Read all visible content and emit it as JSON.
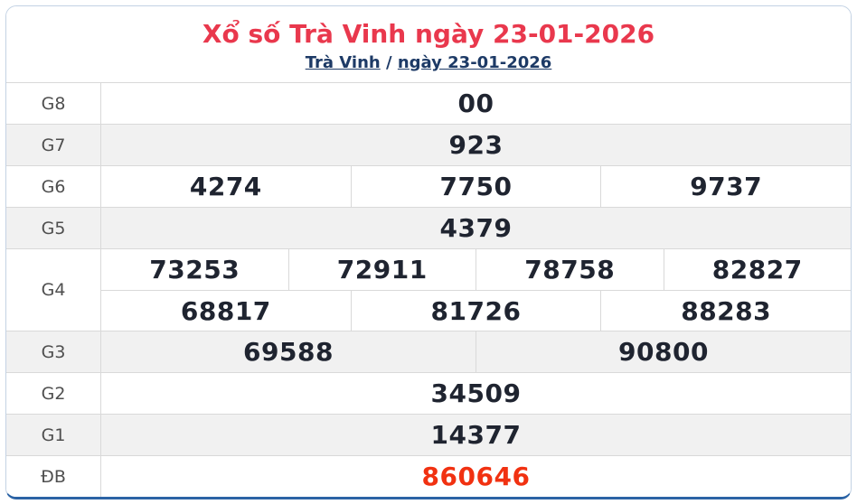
{
  "header": {
    "title": "Xổ số Trà Vinh ngày 23-01-2026",
    "breadcrumb": {
      "province_link": "Trà Vinh",
      "separator": "/",
      "date_link": "ngày 23-01-2026"
    }
  },
  "colors": {
    "title_red": "#e9384d",
    "link_navy": "#1d3a66",
    "number_dark": "#1f2430",
    "special_red": "#f13111",
    "shaded_row_bg": "#f1f1f1",
    "cell_border": "#d9d9d9",
    "card_border": "#c3d2e4",
    "card_bottom_border": "#2b63a5"
  },
  "table": {
    "rows": [
      {
        "label": "G8",
        "shaded": false,
        "special": false,
        "lines": [
          [
            "00"
          ]
        ]
      },
      {
        "label": "G7",
        "shaded": true,
        "special": false,
        "lines": [
          [
            "923"
          ]
        ]
      },
      {
        "label": "G6",
        "shaded": false,
        "special": false,
        "lines": [
          [
            "4274",
            "7750",
            "9737"
          ]
        ]
      },
      {
        "label": "G5",
        "shaded": true,
        "special": false,
        "lines": [
          [
            "4379"
          ]
        ]
      },
      {
        "label": "G4",
        "shaded": false,
        "special": false,
        "lines": [
          [
            "73253",
            "72911",
            "78758",
            "82827"
          ],
          [
            "68817",
            "81726",
            "88283"
          ]
        ]
      },
      {
        "label": "G3",
        "shaded": true,
        "special": false,
        "lines": [
          [
            "69588",
            "90800"
          ]
        ]
      },
      {
        "label": "G2",
        "shaded": false,
        "special": false,
        "lines": [
          [
            "34509"
          ]
        ]
      },
      {
        "label": "G1",
        "shaded": true,
        "special": false,
        "lines": [
          [
            "14377"
          ]
        ]
      },
      {
        "label": "ĐB",
        "shaded": false,
        "special": true,
        "lines": [
          [
            "860646"
          ]
        ]
      }
    ]
  }
}
